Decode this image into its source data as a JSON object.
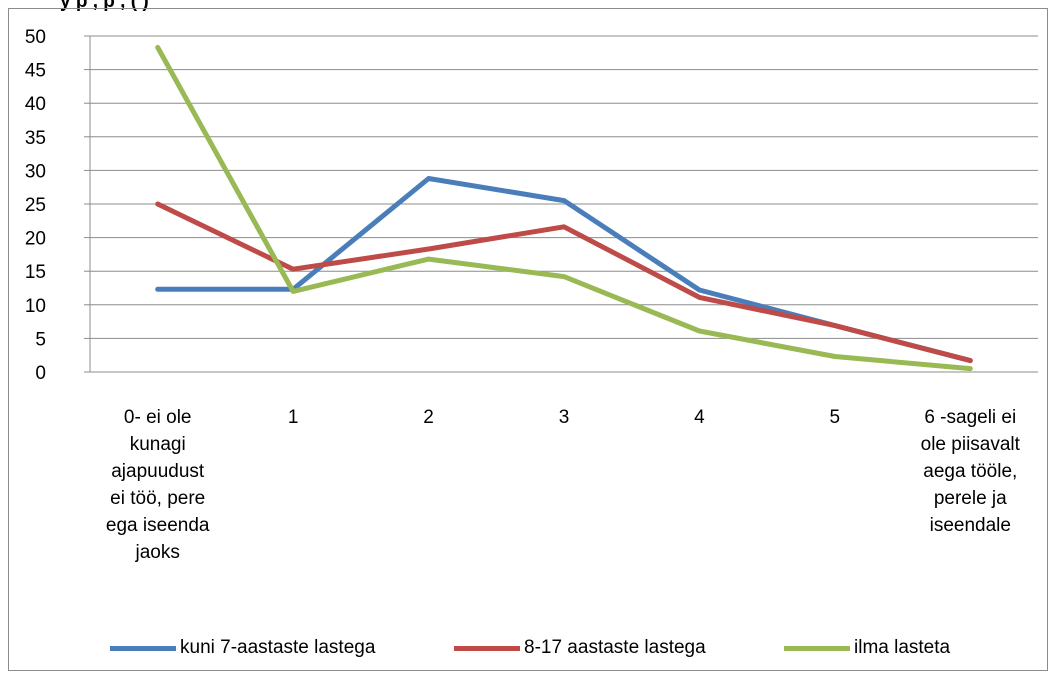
{
  "title_partial": "y p                          ,  p               ,  (  )",
  "chart_data": {
    "type": "line",
    "categories": [
      "0- ei ole kunagi ajapuudust ei töö, pere ega iseenda jaoks",
      "1",
      "2",
      "3",
      "4",
      "5",
      "6 -sageli ei ole piisavalt aega tööle, perele ja iseendale"
    ],
    "category_lines": [
      [
        "0- ei ole",
        "kunagi",
        "ajapuudust",
        "ei töö, pere",
        "ega iseenda",
        "jaoks"
      ],
      [
        "1"
      ],
      [
        "2"
      ],
      [
        "3"
      ],
      [
        "4"
      ],
      [
        "5"
      ],
      [
        "6 -sageli ei",
        "ole piisavalt",
        "aega tööle,",
        "perele ja",
        "iseendale"
      ]
    ],
    "yticks": [
      "0",
      "5",
      "10",
      "15",
      "20",
      "25",
      "30",
      "35",
      "40",
      "45",
      "50"
    ],
    "ylim": [
      0,
      50
    ],
    "grid": true,
    "legend_position": "bottom",
    "series": [
      {
        "name": "kuni 7-aastaste  lastega",
        "color": "#4a7ebb",
        "values": [
          12.3,
          12.3,
          28.8,
          25.5,
          12.2,
          6.9,
          1.7
        ]
      },
      {
        "name": "8-17 aastaste  lastega",
        "color": "#be4b48",
        "values": [
          25,
          15.3,
          18.3,
          21.6,
          11.1,
          6.9,
          1.7
        ]
      },
      {
        "name": "ilma lasteta",
        "color": "#98b954",
        "values": [
          48.3,
          12,
          16.8,
          14.2,
          6.1,
          2.3,
          0.5
        ]
      }
    ]
  }
}
